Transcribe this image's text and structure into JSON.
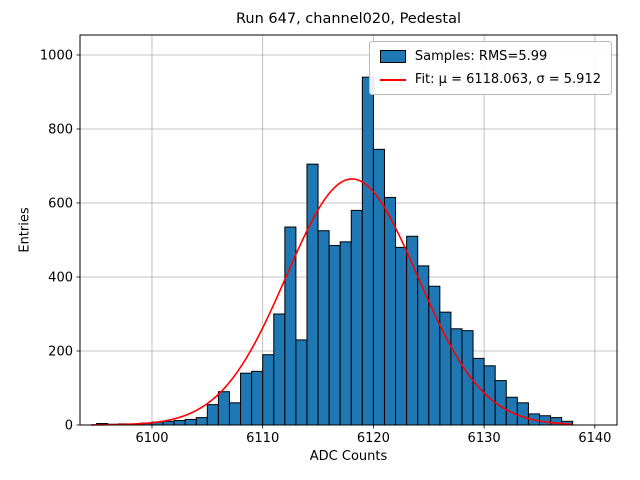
{
  "title": "Run 647, channel020, Pedestal",
  "xlabel": "ADC Counts",
  "ylabel": "Entries",
  "legend": {
    "samples_label": "Samples: RMS=5.99",
    "fit_label": "Fit: μ = 6118.063, σ = 5.912"
  },
  "colors": {
    "bar_fill": "#1f77b4",
    "bar_edge": "#000000",
    "fit_line": "#ff0000",
    "grid": "#b0b0b0",
    "axes": "#000000"
  },
  "chart_data": {
    "type": "bar",
    "subtype": "histogram",
    "title": "Run 647, channel020, Pedestal",
    "xlabel": "ADC Counts",
    "ylabel": "Entries",
    "bin_start": 6095,
    "bin_width": 1,
    "values": [
      4,
      2,
      3,
      2,
      5,
      8,
      10,
      12,
      15,
      20,
      55,
      90,
      60,
      140,
      145,
      190,
      300,
      535,
      230,
      705,
      525,
      485,
      495,
      580,
      940,
      745,
      615,
      480,
      510,
      430,
      375,
      305,
      260,
      255,
      180,
      160,
      120,
      75,
      60,
      30,
      25,
      20,
      10
    ],
    "rms": 5.99,
    "fit": {
      "type": "gaussian",
      "mu": 6118.063,
      "sigma": 5.912,
      "amplitude": 665,
      "x_min": 6094.5,
      "x_max": 6138
    },
    "xlim": [
      6093.5,
      6142.0
    ],
    "ylim": [
      0,
      1054
    ],
    "xticks": [
      6100,
      6110,
      6120,
      6130,
      6140
    ],
    "yticks": [
      0,
      200,
      400,
      600,
      800,
      1000
    ],
    "grid": true,
    "legend_position": "upper right"
  }
}
